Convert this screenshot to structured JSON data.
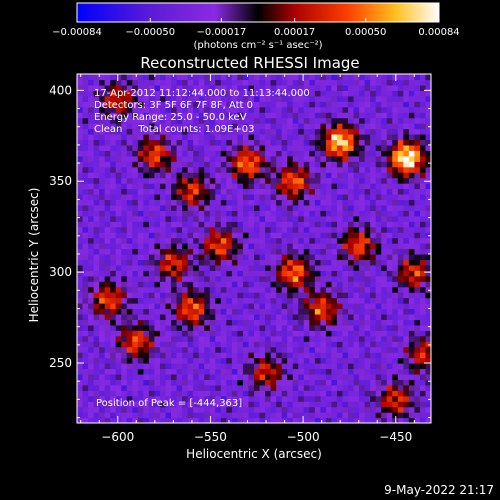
{
  "chart_data": {
    "type": "heatmap",
    "title": "Reconstructed RHESSI Image",
    "xlabel": "Heliocentric X (arcsec)",
    "ylabel": "Heliocentric Y (arcsec)",
    "xlim": [
      -622,
      -431
    ],
    "ylim": [
      217,
      409
    ],
    "x_ticks": [
      -600,
      -550,
      -500,
      -450
    ],
    "x_tick_labels": [
      "−600",
      "−550",
      "−500",
      "−450"
    ],
    "y_ticks": [
      250,
      300,
      350,
      400
    ],
    "y_tick_labels": [
      "250",
      "300",
      "350",
      "400"
    ],
    "grid": false,
    "colorbar": {
      "min": -0.00084,
      "max": 0.00084,
      "ticks": [
        -0.00084,
        -0.0005,
        -0.00017,
        0.00017,
        0.0005,
        0.00084
      ],
      "tick_labels": [
        "−0.00084",
        "−0.00050",
        "−0.00017",
        "0.00017",
        "0.00050",
        "0.00084"
      ],
      "unit_label": "(photons cm⁻² s⁻¹ asec⁻²)",
      "colors": [
        "#0000ff",
        "#8a2be2",
        "#000000",
        "#cc0000",
        "#ff8000",
        "#ffff66",
        "#ffffff"
      ]
    },
    "annotations": [
      "17-Apr-2012 11:12:44.000 to 11:13:44.000",
      "Detectors: 3F 5F 6F 7F 8F, Att 0",
      "Energy Range: 25.0 - 50.0 keV",
      "Clean     Total counts: 1.09E+03"
    ],
    "peak_label": "Position of Peak = [-444,363]",
    "peak": [
      -444,
      363
    ],
    "hotspots": [
      {
        "x": -444,
        "y": 363,
        "intensity": 0.00084
      },
      {
        "x": -480,
        "y": 372,
        "intensity": 0.0007
      },
      {
        "x": -505,
        "y": 350,
        "intensity": 0.0004
      },
      {
        "x": -530,
        "y": 360,
        "intensity": 0.00045
      },
      {
        "x": -580,
        "y": 365,
        "intensity": 0.00035
      },
      {
        "x": -560,
        "y": 345,
        "intensity": 0.0003
      },
      {
        "x": -545,
        "y": 315,
        "intensity": 0.00035
      },
      {
        "x": -505,
        "y": 300,
        "intensity": 0.00045
      },
      {
        "x": -490,
        "y": 280,
        "intensity": 0.00035
      },
      {
        "x": -470,
        "y": 315,
        "intensity": 0.00035
      },
      {
        "x": -440,
        "y": 300,
        "intensity": 0.0003
      },
      {
        "x": -605,
        "y": 285,
        "intensity": 0.00035
      },
      {
        "x": -590,
        "y": 262,
        "intensity": 0.00035
      },
      {
        "x": -560,
        "y": 280,
        "intensity": 0.0004
      },
      {
        "x": -570,
        "y": 305,
        "intensity": 0.0003
      },
      {
        "x": -520,
        "y": 245,
        "intensity": 0.00025
      },
      {
        "x": -450,
        "y": 230,
        "intensity": 0.0003
      },
      {
        "x": -435,
        "y": 255,
        "intensity": 0.00025
      },
      {
        "x": -600,
        "y": 395,
        "intensity": 0.00025
      }
    ]
  },
  "footer_timestamp": "9-May-2022 21:17"
}
